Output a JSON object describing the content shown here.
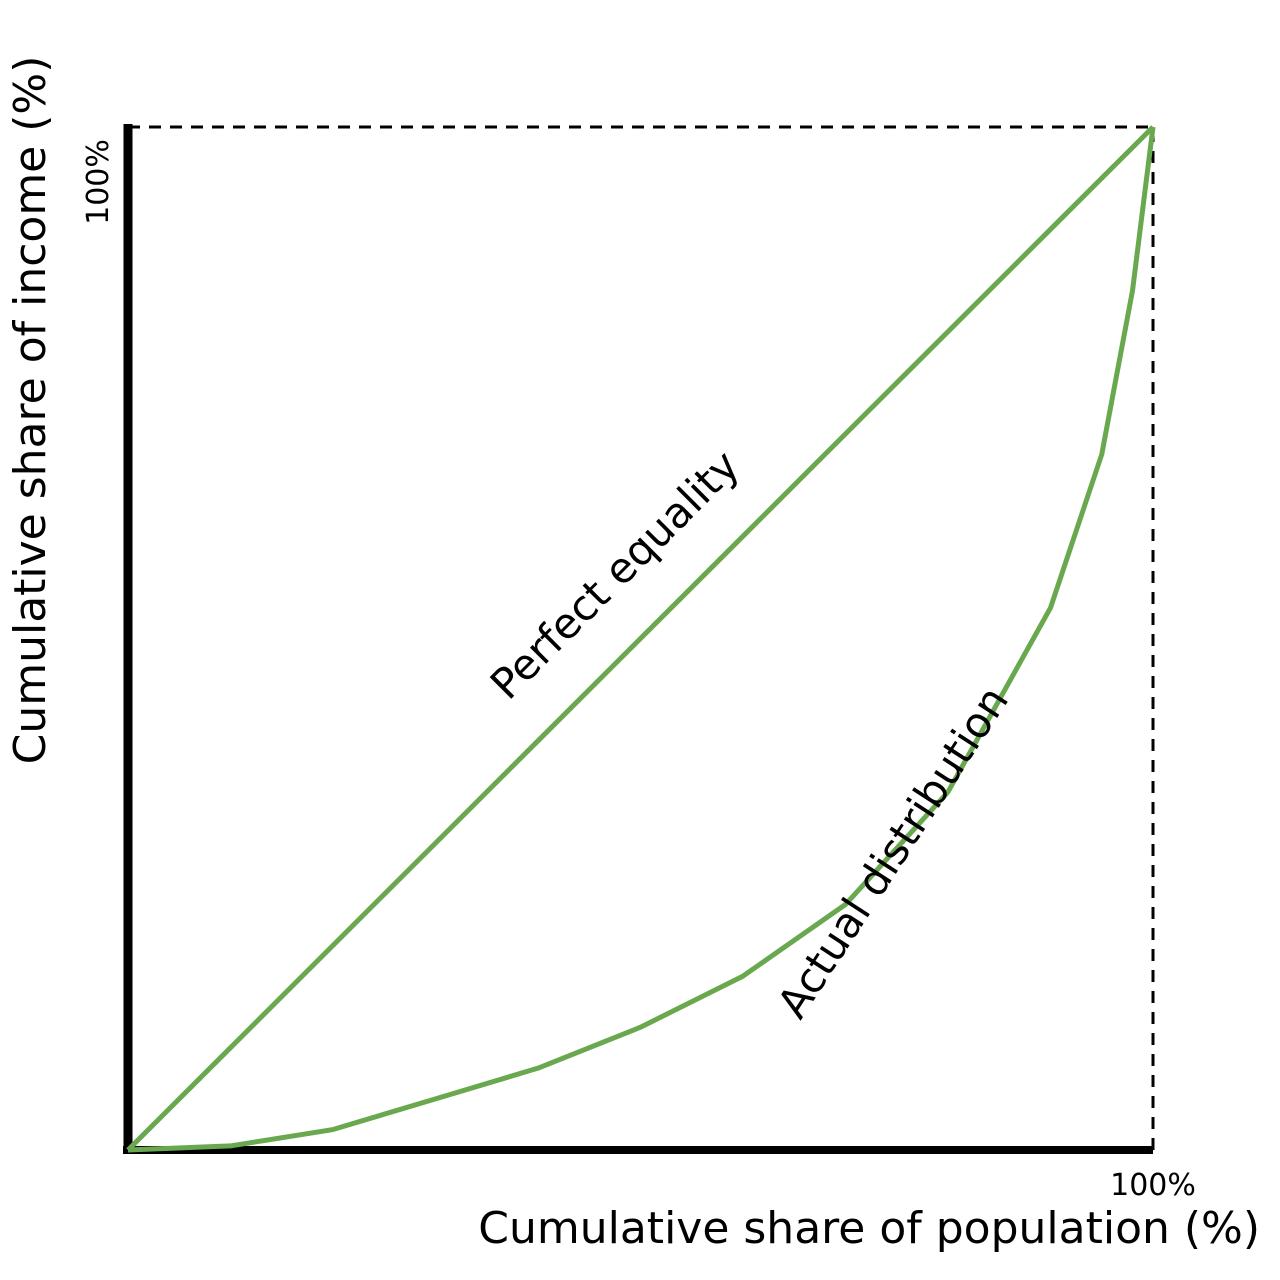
{
  "chart_data": {
    "type": "line",
    "x_label": "Cumulative share of population (%)",
    "y_label": "Cumulative share of income (%)",
    "x": [
      0,
      10,
      20,
      30,
      40,
      50,
      60,
      70,
      80,
      90,
      95,
      98,
      100
    ],
    "series": [
      {
        "name": "Perfect equality",
        "color": "#6aa84f",
        "values": [
          0,
          10,
          20,
          30,
          40,
          50,
          60,
          70,
          80,
          90,
          95,
          98,
          100
        ]
      },
      {
        "name": "Actual distribution",
        "color": "#6aa84f",
        "values": [
          0,
          0.4,
          2,
          5,
          8,
          12,
          17,
          24,
          35,
          53,
          68,
          84,
          100
        ]
      }
    ],
    "xlim": [
      0,
      100
    ],
    "ylim": [
      0,
      100
    ],
    "xticks": [
      {
        "value": 100,
        "label": "100%"
      }
    ],
    "yticks": [
      {
        "value": 100,
        "label": "100%"
      }
    ],
    "grid": true
  }
}
